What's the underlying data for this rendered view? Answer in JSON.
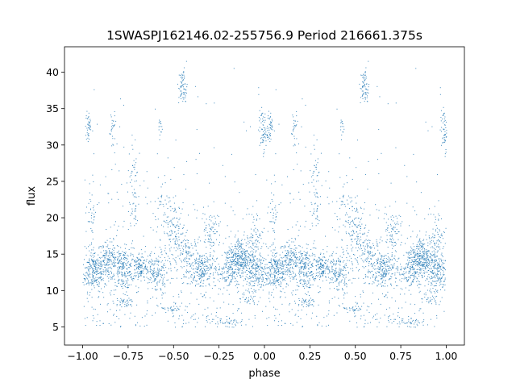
{
  "chart_data": {
    "type": "scatter",
    "title": "1SWASPJ162146.02-255756.9 Period 216661.375s",
    "xlabel": "phase",
    "ylabel": "flux",
    "xlim": [
      -1.1,
      1.1
    ],
    "ylim": [
      2.5,
      43.5
    ],
    "xticks": [
      -1.0,
      -0.75,
      -0.5,
      -0.25,
      0.0,
      0.25,
      0.5,
      0.75,
      1.0
    ],
    "xtick_labels": [
      "−1.00",
      "−0.75",
      "−0.50",
      "−0.25",
      "0.00",
      "0.25",
      "0.50",
      "0.75",
      "1.00"
    ],
    "yticks": [
      5,
      10,
      15,
      20,
      25,
      30,
      35,
      40
    ],
    "ytick_labels": [
      "5",
      "10",
      "15",
      "20",
      "25",
      "30",
      "35",
      "40"
    ],
    "grid": false,
    "color": "#1f77b4",
    "note_on_symmetry": "data repeats with period 1 in phase",
    "clusters": [
      {
        "x": -0.94,
        "y": 12.8,
        "sx": 0.035,
        "sy": 1.4,
        "n": 260
      },
      {
        "x": -0.86,
        "y": 14.2,
        "sx": 0.03,
        "sy": 1.3,
        "n": 150
      },
      {
        "x": -0.78,
        "y": 13.0,
        "sx": 0.03,
        "sy": 1.4,
        "n": 200
      },
      {
        "x": -0.69,
        "y": 13.3,
        "sx": 0.025,
        "sy": 1.0,
        "n": 130
      },
      {
        "x": -0.6,
        "y": 12.5,
        "sx": 0.035,
        "sy": 1.5,
        "n": 170
      },
      {
        "x": -0.5,
        "y": 18.0,
        "sx": 0.03,
        "sy": 2.0,
        "n": 120
      },
      {
        "x": -0.42,
        "y": 14.5,
        "sx": 0.03,
        "sy": 1.6,
        "n": 120
      },
      {
        "x": -0.34,
        "y": 12.8,
        "sx": 0.035,
        "sy": 1.5,
        "n": 220
      },
      {
        "x": -0.3,
        "y": 18.5,
        "sx": 0.025,
        "sy": 1.2,
        "n": 70
      },
      {
        "x": -0.2,
        "y": 13.0,
        "sx": 0.03,
        "sy": 1.5,
        "n": 150
      },
      {
        "x": -0.13,
        "y": 14.5,
        "sx": 0.035,
        "sy": 1.5,
        "n": 300
      },
      {
        "x": -0.06,
        "y": 16.5,
        "sx": 0.025,
        "sy": 2.2,
        "n": 100
      },
      {
        "x": -0.45,
        "y": 38.0,
        "sx": 0.012,
        "sy": 1.3,
        "n": 70
      },
      {
        "x": -0.01,
        "y": 32.0,
        "sx": 0.012,
        "sy": 1.4,
        "n": 70
      },
      {
        "x": -0.97,
        "y": 32.5,
        "sx": 0.008,
        "sy": 1.2,
        "n": 40
      },
      {
        "x": -0.84,
        "y": 32.0,
        "sx": 0.008,
        "sy": 1.8,
        "n": 30
      },
      {
        "x": -0.58,
        "y": 32.5,
        "sx": 0.008,
        "sy": 0.8,
        "n": 15
      },
      {
        "x": -0.72,
        "y": 24.0,
        "sx": 0.015,
        "sy": 3.5,
        "n": 60
      },
      {
        "x": -0.78,
        "y": 8.4,
        "sx": 0.03,
        "sy": 0.3,
        "n": 40
      },
      {
        "x": -0.51,
        "y": 7.6,
        "sx": 0.03,
        "sy": 0.3,
        "n": 30
      },
      {
        "x": -0.2,
        "y": 5.8,
        "sx": 0.03,
        "sy": 0.3,
        "n": 30
      },
      {
        "x": -0.1,
        "y": 9.0,
        "sx": 0.025,
        "sy": 0.5,
        "n": 30
      },
      {
        "x": -0.95,
        "y": 20.5,
        "sx": 0.01,
        "sy": 2.0,
        "n": 30
      },
      {
        "x": -0.55,
        "y": 22.0,
        "sx": 0.03,
        "sy": 2.0,
        "n": 40
      },
      {
        "x": -0.05,
        "y": 12.5,
        "sx": 0.025,
        "sy": 1.3,
        "n": 140
      }
    ],
    "background_points": 420
  }
}
